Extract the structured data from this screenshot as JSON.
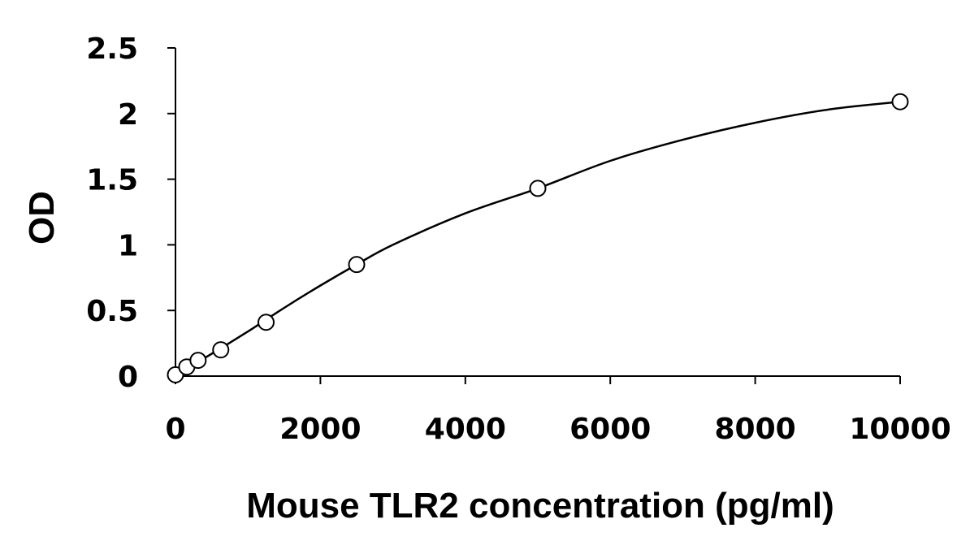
{
  "chart_data": {
    "type": "scatter",
    "title": "",
    "xlabel": "Mouse TLR2 concentration (pg/ml)",
    "ylabel": "OD",
    "xlim": [
      0,
      10000
    ],
    "ylim": [
      0,
      2.5
    ],
    "xticks": [
      0,
      2000,
      4000,
      6000,
      8000,
      10000
    ],
    "xtick_labels": [
      "0",
      "2000",
      "4000",
      "6000",
      "8000",
      "10000"
    ],
    "yticks": [
      0,
      0.5,
      1,
      1.5,
      2,
      2.5
    ],
    "ytick_labels": [
      "0",
      "0.5",
      "1",
      "1.5",
      "2",
      "2.5"
    ],
    "grid": false,
    "series": [
      {
        "marker": "open-circle",
        "color": "#000000",
        "x": [
          0,
          156,
          312,
          625,
          1250,
          2500,
          5000,
          10000
        ],
        "y": [
          0.01,
          0.07,
          0.12,
          0.2,
          0.41,
          0.85,
          1.43,
          2.09
        ]
      }
    ],
    "trendline": {
      "type": "smooth-curve",
      "color": "#000000",
      "x": [
        0,
        250,
        500,
        1000,
        1500,
        2000,
        2500,
        3000,
        4000,
        5000,
        6000,
        7000,
        8000,
        9000,
        10000
      ],
      "y": [
        0.0,
        0.09,
        0.17,
        0.34,
        0.52,
        0.69,
        0.85,
        1.0,
        1.24,
        1.43,
        1.64,
        1.8,
        1.93,
        2.03,
        2.09
      ]
    }
  }
}
